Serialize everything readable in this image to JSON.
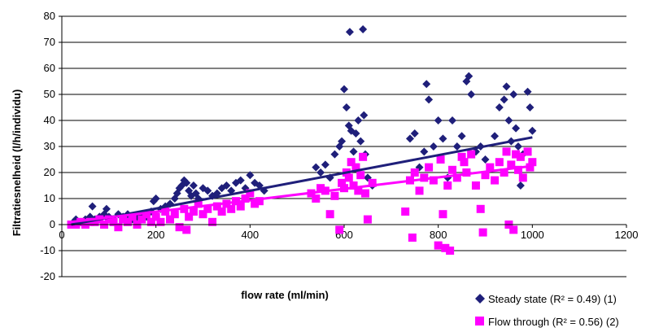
{
  "chart_data": {
    "type": "scatter",
    "xlabel": "flow rate (ml/min)",
    "ylabel": "Filtratiesnelheid (l/h/individu)",
    "xlim": [
      0,
      1200
    ],
    "ylim": [
      -20,
      80
    ],
    "xticks": [
      0,
      200,
      400,
      600,
      800,
      1000,
      1200
    ],
    "yticks": [
      -20,
      -10,
      0,
      10,
      20,
      30,
      40,
      50,
      60,
      70,
      80
    ],
    "grid": "horizontal",
    "legend": "bottom-right",
    "series": [
      {
        "name": "Steady state (R² = 0.49) (1)",
        "marker": "diamond",
        "color": "#1f1f7a",
        "trendline": [
          [
            20,
            0
          ],
          [
            1000,
            33.5
          ]
        ],
        "points": [
          [
            20,
            0
          ],
          [
            25,
            1
          ],
          [
            30,
            2
          ],
          [
            40,
            1
          ],
          [
            50,
            2
          ],
          [
            60,
            3
          ],
          [
            65,
            7
          ],
          [
            70,
            2
          ],
          [
            80,
            3
          ],
          [
            90,
            4
          ],
          [
            95,
            6
          ],
          [
            100,
            3
          ],
          [
            110,
            2
          ],
          [
            120,
            4
          ],
          [
            130,
            3
          ],
          [
            140,
            4
          ],
          [
            150,
            2
          ],
          [
            160,
            3
          ],
          [
            170,
            4
          ],
          [
            180,
            3
          ],
          [
            190,
            5
          ],
          [
            195,
            9
          ],
          [
            200,
            10
          ],
          [
            210,
            6
          ],
          [
            220,
            7
          ],
          [
            230,
            8
          ],
          [
            240,
            10
          ],
          [
            245,
            12
          ],
          [
            250,
            14
          ],
          [
            255,
            15
          ],
          [
            260,
            17
          ],
          [
            265,
            16
          ],
          [
            270,
            13
          ],
          [
            275,
            11
          ],
          [
            280,
            15
          ],
          [
            285,
            12
          ],
          [
            290,
            10
          ],
          [
            300,
            14
          ],
          [
            310,
            13
          ],
          [
            320,
            11
          ],
          [
            330,
            12
          ],
          [
            340,
            14
          ],
          [
            350,
            15
          ],
          [
            360,
            13
          ],
          [
            370,
            16
          ],
          [
            380,
            17
          ],
          [
            390,
            14
          ],
          [
            400,
            19
          ],
          [
            410,
            16
          ],
          [
            420,
            15
          ],
          [
            430,
            13
          ],
          [
            540,
            22
          ],
          [
            550,
            20
          ],
          [
            560,
            23
          ],
          [
            570,
            18
          ],
          [
            580,
            27
          ],
          [
            590,
            30
          ],
          [
            595,
            32
          ],
          [
            600,
            52
          ],
          [
            605,
            45
          ],
          [
            610,
            38
          ],
          [
            612,
            74
          ],
          [
            615,
            36
          ],
          [
            620,
            28
          ],
          [
            625,
            35
          ],
          [
            630,
            40
          ],
          [
            635,
            32
          ],
          [
            640,
            75
          ],
          [
            642,
            42
          ],
          [
            645,
            27
          ],
          [
            650,
            18
          ],
          [
            660,
            15
          ],
          [
            740,
            33
          ],
          [
            750,
            35
          ],
          [
            760,
            22
          ],
          [
            770,
            28
          ],
          [
            775,
            54
          ],
          [
            780,
            48
          ],
          [
            790,
            30
          ],
          [
            800,
            40
          ],
          [
            810,
            33
          ],
          [
            820,
            18
          ],
          [
            830,
            40
          ],
          [
            840,
            30
          ],
          [
            850,
            34
          ],
          [
            860,
            55
          ],
          [
            865,
            57
          ],
          [
            870,
            50
          ],
          [
            880,
            28
          ],
          [
            890,
            30
          ],
          [
            900,
            25
          ],
          [
            920,
            34
          ],
          [
            930,
            45
          ],
          [
            940,
            48
          ],
          [
            945,
            53
          ],
          [
            950,
            40
          ],
          [
            955,
            32
          ],
          [
            960,
            50
          ],
          [
            965,
            37
          ],
          [
            970,
            30
          ],
          [
            975,
            15
          ],
          [
            980,
            27
          ],
          [
            990,
            51
          ],
          [
            995,
            45
          ],
          [
            1000,
            36
          ]
        ]
      },
      {
        "name": "Flow through (R² = 0.56) (2)",
        "marker": "square",
        "color": "#ff00ff",
        "trendline": [
          [
            20,
            1
          ],
          [
            1000,
            22.5
          ]
        ],
        "points": [
          [
            20,
            0
          ],
          [
            30,
            0
          ],
          [
            40,
            1
          ],
          [
            50,
            0
          ],
          [
            60,
            1
          ],
          [
            70,
            1
          ],
          [
            80,
            2
          ],
          [
            90,
            0
          ],
          [
            100,
            2
          ],
          [
            110,
            1
          ],
          [
            120,
            -1
          ],
          [
            130,
            2
          ],
          [
            140,
            1
          ],
          [
            150,
            3
          ],
          [
            160,
            0
          ],
          [
            170,
            2
          ],
          [
            180,
            4
          ],
          [
            190,
            1
          ],
          [
            200,
            3
          ],
          [
            210,
            1
          ],
          [
            220,
            5
          ],
          [
            230,
            2
          ],
          [
            240,
            4
          ],
          [
            250,
            -1
          ],
          [
            260,
            6
          ],
          [
            265,
            -2
          ],
          [
            270,
            3
          ],
          [
            280,
            5
          ],
          [
            290,
            8
          ],
          [
            300,
            4
          ],
          [
            310,
            6
          ],
          [
            320,
            1
          ],
          [
            330,
            7
          ],
          [
            340,
            5
          ],
          [
            350,
            8
          ],
          [
            360,
            6
          ],
          [
            370,
            9
          ],
          [
            380,
            7
          ],
          [
            390,
            10
          ],
          [
            400,
            12
          ],
          [
            410,
            8
          ],
          [
            420,
            9
          ],
          [
            530,
            12
          ],
          [
            540,
            10
          ],
          [
            550,
            14
          ],
          [
            560,
            13
          ],
          [
            570,
            4
          ],
          [
            580,
            11
          ],
          [
            590,
            -2
          ],
          [
            595,
            16
          ],
          [
            600,
            14
          ],
          [
            605,
            20
          ],
          [
            610,
            18
          ],
          [
            615,
            24
          ],
          [
            620,
            15
          ],
          [
            625,
            22
          ],
          [
            630,
            13
          ],
          [
            635,
            19
          ],
          [
            640,
            26
          ],
          [
            645,
            12
          ],
          [
            650,
            2
          ],
          [
            660,
            16
          ],
          [
            730,
            5
          ],
          [
            740,
            17
          ],
          [
            745,
            -5
          ],
          [
            750,
            20
          ],
          [
            760,
            13
          ],
          [
            770,
            18
          ],
          [
            780,
            22
          ],
          [
            790,
            17
          ],
          [
            800,
            -8
          ],
          [
            805,
            25
          ],
          [
            810,
            4
          ],
          [
            815,
            -9
          ],
          [
            820,
            15
          ],
          [
            825,
            -10
          ],
          [
            830,
            21
          ],
          [
            840,
            18
          ],
          [
            850,
            26
          ],
          [
            855,
            24
          ],
          [
            860,
            20
          ],
          [
            870,
            27
          ],
          [
            880,
            15
          ],
          [
            890,
            6
          ],
          [
            895,
            -3
          ],
          [
            900,
            19
          ],
          [
            910,
            22
          ],
          [
            920,
            17
          ],
          [
            930,
            24
          ],
          [
            940,
            20
          ],
          [
            945,
            28
          ],
          [
            950,
            0
          ],
          [
            955,
            23
          ],
          [
            960,
            -2
          ],
          [
            965,
            27
          ],
          [
            970,
            21
          ],
          [
            975,
            26
          ],
          [
            980,
            18
          ],
          [
            990,
            28
          ],
          [
            995,
            22
          ],
          [
            1000,
            24
          ]
        ]
      }
    ]
  }
}
